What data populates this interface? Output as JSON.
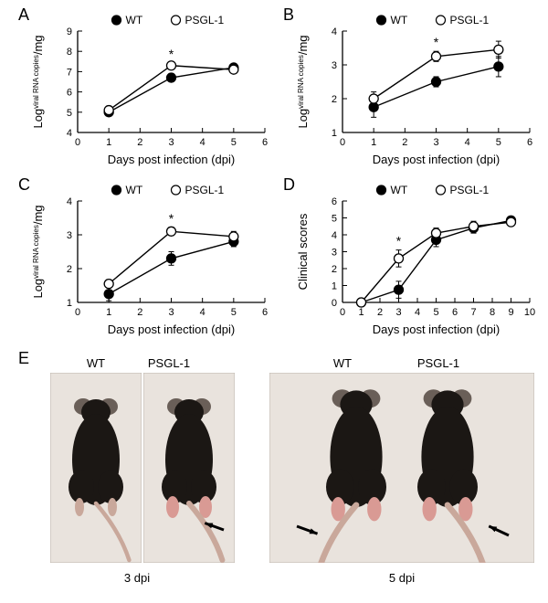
{
  "panels": {
    "A": {
      "label": "A"
    },
    "B": {
      "label": "B"
    },
    "C": {
      "label": "C"
    },
    "D": {
      "label": "D"
    },
    "E": {
      "label": "E"
    }
  },
  "legend": {
    "wt": "WT",
    "psgl": "PSGL-1"
  },
  "chartA": {
    "type": "line",
    "x": [
      1,
      3,
      5
    ],
    "wt": {
      "y": [
        5.0,
        6.7,
        7.2
      ],
      "err": [
        0.12,
        0.12,
        0.12
      ]
    },
    "psgl": {
      "y": [
        5.1,
        7.3,
        7.1
      ],
      "err": [
        0.12,
        0.12,
        0.12
      ]
    },
    "sig_x": 3,
    "xlim": [
      0,
      6
    ],
    "xticks": [
      0,
      1,
      2,
      3,
      4,
      5,
      6
    ],
    "ylim": [
      4,
      9
    ],
    "yticks": [
      4,
      5,
      6,
      7,
      8,
      9
    ],
    "xlabel": "Days post infection (dpi)",
    "ylabel_main": "viral RNA copies",
    "ylabel_prefix": "Log",
    "ylabel_suffix": "/mg",
    "colors": {
      "axis": "#000000",
      "wt_fill": "#000000",
      "psgl_fill": "#ffffff",
      "line": "#000000"
    },
    "font": {
      "axis_label": 13,
      "tick": 11,
      "legend": 12
    }
  },
  "chartB": {
    "type": "line",
    "x": [
      1,
      3,
      5
    ],
    "wt": {
      "y": [
        1.75,
        2.5,
        2.95
      ],
      "err": [
        0.3,
        0.15,
        0.3
      ]
    },
    "psgl": {
      "y": [
        2.0,
        3.25,
        3.45
      ],
      "err": [
        0.2,
        0.15,
        0.25
      ]
    },
    "sig_x": 3,
    "xlim": [
      0,
      6
    ],
    "xticks": [
      0,
      1,
      2,
      3,
      4,
      5,
      6
    ],
    "ylim": [
      1,
      4
    ],
    "yticks": [
      1,
      2,
      3,
      4
    ],
    "xlabel": "Days post infection (dpi)",
    "ylabel_main": "viral RNA copies",
    "ylabel_prefix": "Log",
    "ylabel_suffix": "/mg",
    "colors": {
      "axis": "#000000",
      "wt_fill": "#000000",
      "psgl_fill": "#ffffff",
      "line": "#000000"
    },
    "font": {
      "axis_label": 13,
      "tick": 11,
      "legend": 12
    }
  },
  "chartC": {
    "type": "line",
    "x": [
      1,
      3,
      5
    ],
    "wt": {
      "y": [
        1.25,
        2.3,
        2.8
      ],
      "err": [
        0.2,
        0.2,
        0.15
      ]
    },
    "psgl": {
      "y": [
        1.55,
        3.1,
        2.95
      ],
      "err": [
        0.12,
        0.12,
        0.15
      ]
    },
    "sig_x": 3,
    "xlim": [
      0,
      6
    ],
    "xticks": [
      0,
      1,
      2,
      3,
      4,
      5,
      6
    ],
    "ylim": [
      1,
      4
    ],
    "yticks": [
      1,
      2,
      3,
      4
    ],
    "xlabel": "Days post infection (dpi)",
    "ylabel_main": "viral RNA copies",
    "ylabel_prefix": "Log",
    "ylabel_suffix": "/mg",
    "colors": {
      "axis": "#000000",
      "wt_fill": "#000000",
      "psgl_fill": "#ffffff",
      "line": "#000000"
    },
    "font": {
      "axis_label": 13,
      "tick": 11,
      "legend": 12
    }
  },
  "chartD": {
    "type": "line",
    "x": [
      1,
      3,
      5,
      7,
      9
    ],
    "wt": {
      "y": [
        0,
        0.75,
        3.7,
        4.4,
        4.85
      ],
      "err": [
        0,
        0.5,
        0.4,
        0.3,
        0.2
      ]
    },
    "psgl": {
      "y": [
        0,
        2.6,
        4.1,
        4.5,
        4.75
      ],
      "err": [
        0,
        0.5,
        0.3,
        0.3,
        0.2
      ]
    },
    "sig_x": 3,
    "xlim": [
      0,
      10
    ],
    "xticks": [
      0,
      1,
      2,
      3,
      4,
      5,
      6,
      7,
      8,
      9,
      10
    ],
    "ylim": [
      0,
      6
    ],
    "yticks": [
      0,
      1,
      2,
      3,
      4,
      5,
      6
    ],
    "xlabel": "Days post infection (dpi)",
    "ylabel": "Clinical scores",
    "colors": {
      "axis": "#000000",
      "wt_fill": "#000000",
      "psgl_fill": "#ffffff",
      "line": "#000000"
    },
    "font": {
      "axis_label": 13,
      "tick": 11,
      "legend": 12
    }
  },
  "photos": {
    "group1": {
      "dpi_label": "3 dpi",
      "wt_label": "WT",
      "psgl_label": "PSGL-1"
    },
    "group2": {
      "dpi_label": "5 dpi",
      "wt_label": "WT",
      "psgl_label": "PSGL-1"
    },
    "colors": {
      "bg": "#e9e3dd",
      "mouse_body": "#1b1714",
      "mouse_ear": "#6a5f58",
      "mouse_tail": "#c9a89b",
      "arrow": "#000000"
    }
  }
}
